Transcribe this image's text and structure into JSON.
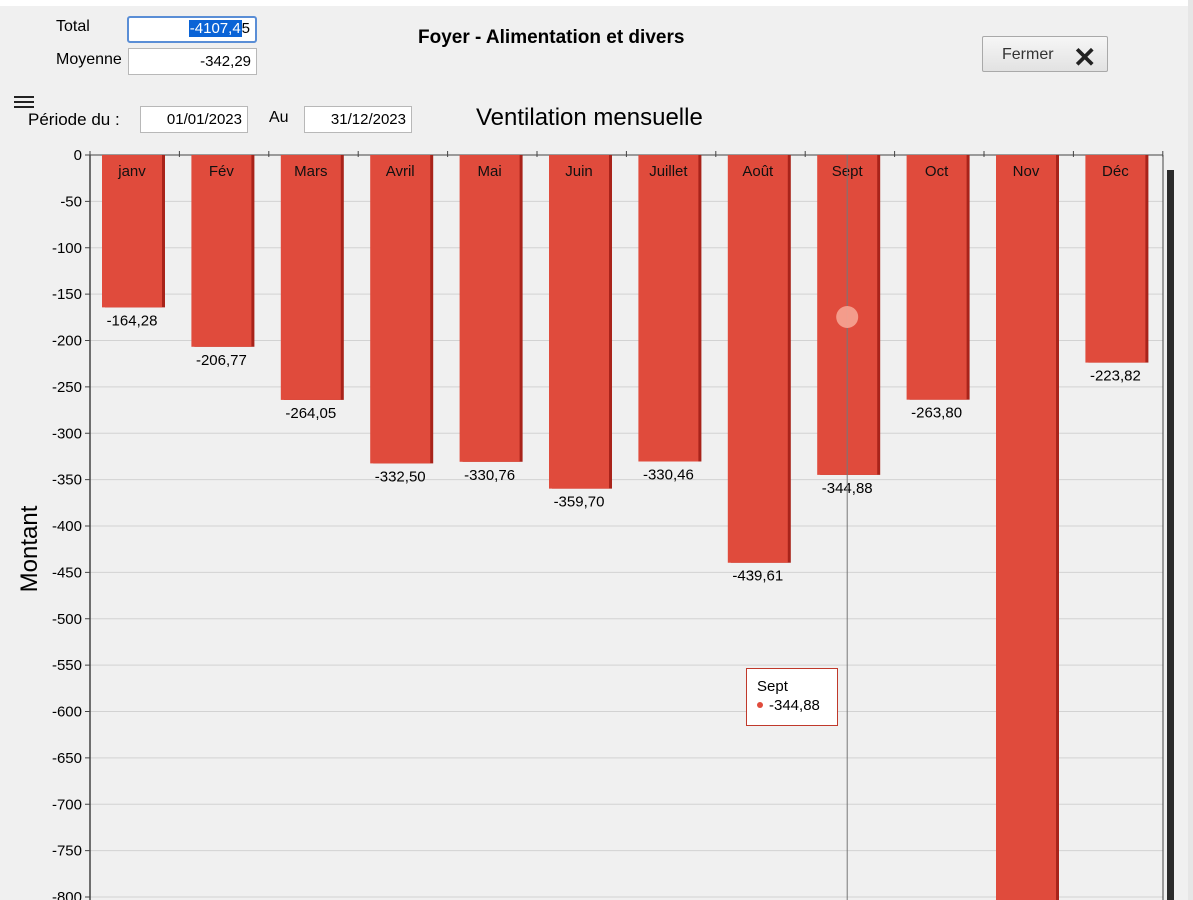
{
  "header": {
    "total_label": "Total",
    "total_value": "-4107,4",
    "total_caret": "5",
    "average_label": "Moyenne",
    "average_value": "-342,29",
    "title": "Foyer - Alimentation et divers",
    "close_label": "Fermer"
  },
  "period": {
    "from_label": "Période du :",
    "from_value": "01/01/2023",
    "to_label": "Au",
    "to_value": "31/12/2023"
  },
  "chart_data": {
    "type": "bar",
    "title": "Ventilation mensuelle",
    "ylabel": "Montant",
    "xlabel": "",
    "categories": [
      "janv",
      "Fév",
      "Mars",
      "Avril",
      "Mai",
      "Juin",
      "Juillet",
      "Août",
      "Sept",
      "Oct",
      "Nov",
      "Déc"
    ],
    "values": [
      -164.28,
      -206.77,
      -264.05,
      -332.5,
      -330.76,
      -359.7,
      -330.46,
      -439.61,
      -344.88,
      -263.8,
      null,
      -223.82
    ],
    "value_labels": [
      "-164,28",
      "-206,77",
      "-264,05",
      "-332,50",
      "-330,76",
      "-359,70",
      "-330,46",
      "-439,61",
      "-344,88",
      "-263,80",
      "",
      "-223,82"
    ],
    "nov_min_visible": -800,
    "yticks": [
      0,
      -50,
      -100,
      -150,
      -200,
      -250,
      -300,
      -350,
      -400,
      -450,
      -500,
      -550,
      -600,
      -650,
      -700,
      -750,
      -800
    ],
    "ylim": [
      -800,
      0
    ],
    "grid": true,
    "bar_color": "#e04b3c"
  },
  "tooltip": {
    "category": "Sept",
    "value": "-344,88"
  },
  "colors": {
    "background": "#f0f0f0",
    "selection": "#0a63d6",
    "bar": "#e04b3c"
  }
}
